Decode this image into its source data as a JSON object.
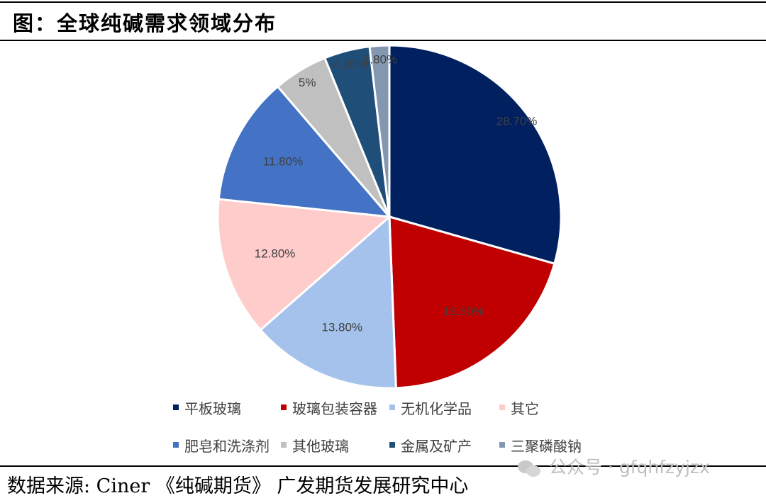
{
  "figure_title": "图：全球纯碱需求领域分布",
  "source_text": "数据来源: Ciner 《纯碱期货》 广发期货发展研究中心",
  "watermark": {
    "icon": "wechat-icon",
    "text": "公众号 · gfqhfzyjzx"
  },
  "chart_data": {
    "type": "pie",
    "title": "",
    "legend_position": "bottom",
    "slices": [
      {
        "label": "平板玻璃",
        "value": 28.7,
        "display": "28.70%",
        "color": "#002060"
      },
      {
        "label": "玻璃包装容器",
        "value": 19.5,
        "display": "19.50%",
        "color": "#c00000"
      },
      {
        "label": "无机化学品",
        "value": 13.8,
        "display": "13.80%",
        "color": "#a4c2ec"
      },
      {
        "label": "其它",
        "value": 12.8,
        "display": "12.80%",
        "color": "#ffcccc"
      },
      {
        "label": "肥皂和洗涤剂",
        "value": 11.8,
        "display": "11.80%",
        "color": "#4472c4"
      },
      {
        "label": "其他玻璃",
        "value": 5,
        "display": "5%",
        "color": "#c0c0c0"
      },
      {
        "label": "金属及矿产",
        "value": 4.2,
        "display": "4.20%",
        "color": "#1f4e79"
      },
      {
        "label": "三聚磷酸钠",
        "value": 1.8,
        "display": "1.80%",
        "color": "#8497b0"
      }
    ]
  }
}
